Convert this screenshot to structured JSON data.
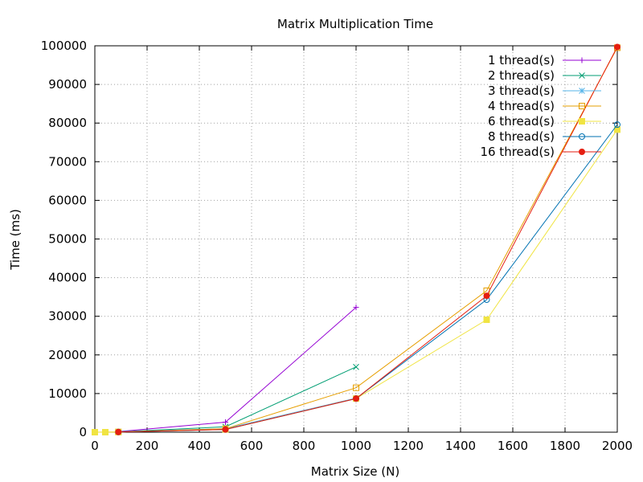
{
  "chart_data": {
    "type": "line",
    "title": "Matrix Multiplication Time",
    "xlabel": "Matrix Size (N)",
    "ylabel": "Time (ms)",
    "xlim": [
      0,
      2000
    ],
    "ylim": [
      0,
      100000
    ],
    "xticks": [
      "0",
      "200",
      "400",
      "600",
      "800",
      "1000",
      "1200",
      "1400",
      "1600",
      "1800",
      "2000"
    ],
    "yticks": [
      "0",
      "10000",
      "20000",
      "30000",
      "40000",
      "50000",
      "60000",
      "70000",
      "80000",
      "90000",
      "100000"
    ],
    "grid": true,
    "legend_position": "top-right",
    "series": [
      {
        "name": "1 thread(s)",
        "color": "#9400d3",
        "marker": "plus",
        "x": [
          90,
          500,
          1000
        ],
        "y": [
          150,
          2600,
          32300
        ]
      },
      {
        "name": "2 thread(s)",
        "color": "#009e73",
        "marker": "cross",
        "x": [
          90,
          500,
          1000
        ],
        "y": [
          100,
          1400,
          16900
        ]
      },
      {
        "name": "3 thread(s)",
        "color": "#56b4e9",
        "marker": "star",
        "x": [
          90,
          500,
          1000
        ],
        "y": [
          80,
          900,
          8800
        ]
      },
      {
        "name": "4 thread(s)",
        "color": "#e69f00",
        "marker": "open-square",
        "x": [
          0,
          90,
          500,
          1000,
          1500,
          2000
        ],
        "y": [
          0,
          60,
          900,
          11500,
          36600,
          99500
        ]
      },
      {
        "name": "6 thread(s)",
        "color": "#f0e442",
        "marker": "filled-square",
        "x": [
          0,
          40,
          90,
          500,
          1000,
          1500,
          2000
        ],
        "y": [
          0,
          0,
          50,
          700,
          8700,
          29100,
          78300
        ]
      },
      {
        "name": "8 thread(s)",
        "color": "#0072b2",
        "marker": "open-circle",
        "x": [
          90,
          500,
          1000,
          1500,
          2000
        ],
        "y": [
          50,
          700,
          8700,
          34300,
          79600
        ]
      },
      {
        "name": "16 thread(s)",
        "color": "#e51e10",
        "marker": "filled-circle",
        "x": [
          90,
          500,
          1000,
          1500,
          2000
        ],
        "y": [
          50,
          700,
          8700,
          35300,
          99700
        ]
      }
    ]
  }
}
